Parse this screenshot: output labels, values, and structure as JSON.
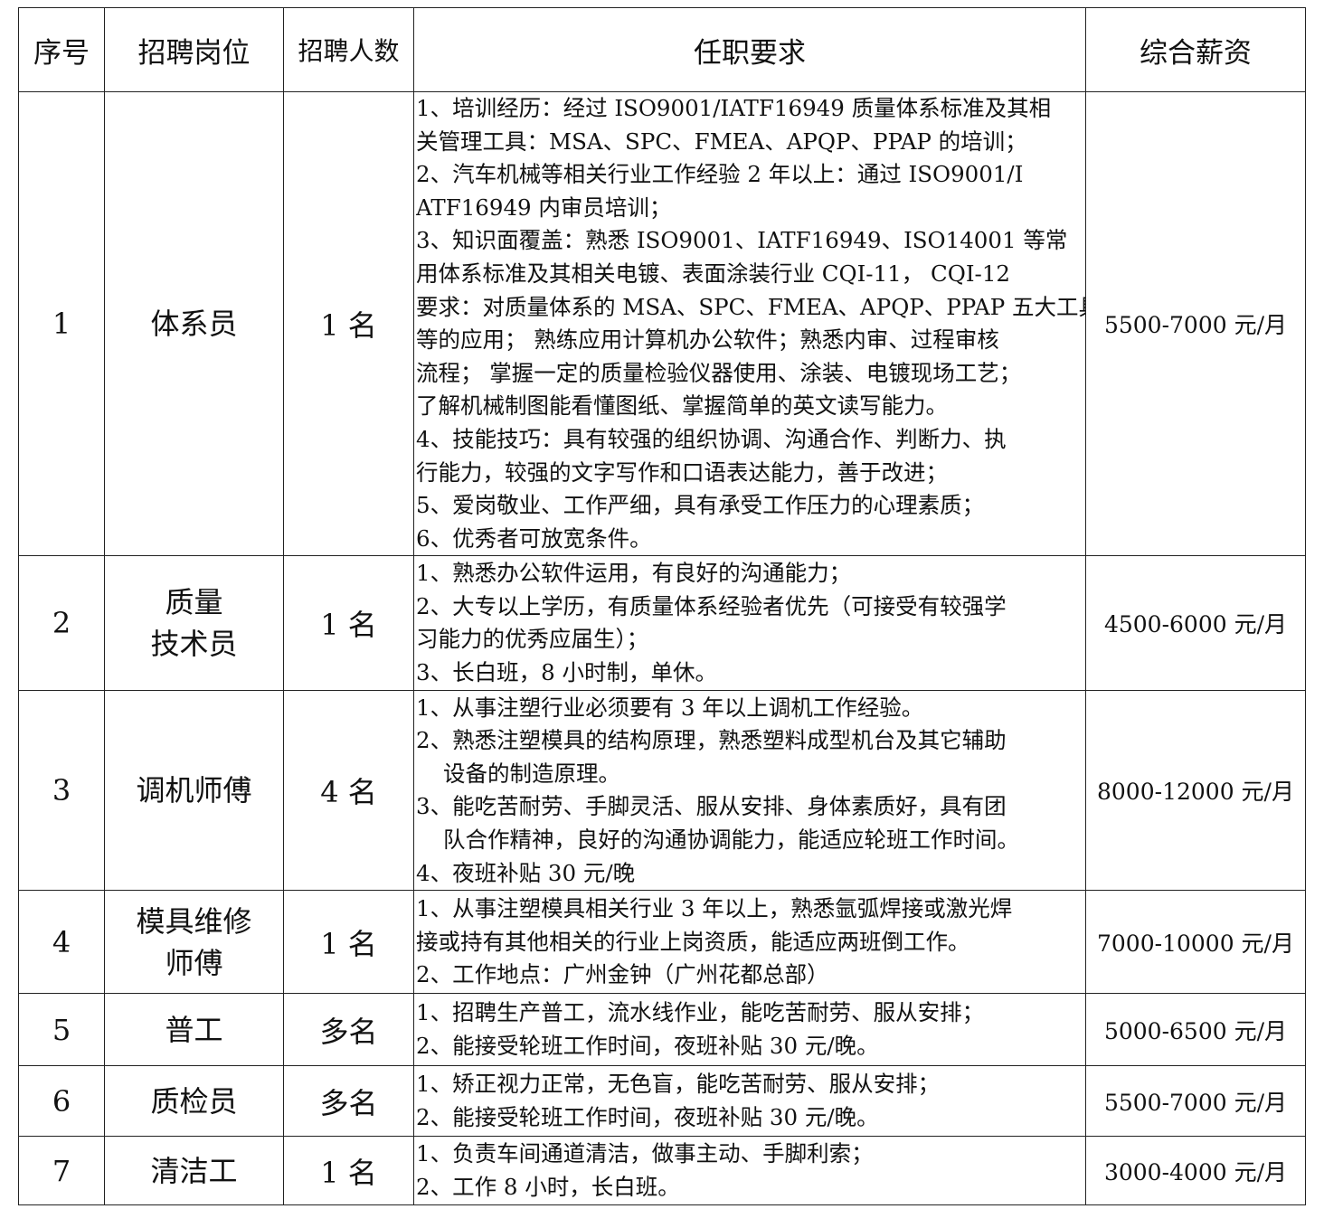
{
  "header": {
    "no": "序号",
    "position": "招聘岗位",
    "count": "招聘人数",
    "requirements": "任职要求",
    "salary": "综合薪资"
  },
  "rows": [
    {
      "no": "1",
      "position": [
        "体系员"
      ],
      "count": "1 名",
      "salary": "5500-7000 元/月",
      "requirements": [
        "1、培训经历：经过 ISO9001/IATF16949 质量体系标准及其相",
        "关管理工具：MSA、SPC、FMEA、APQP、PPAP 的培训；",
        "2、汽车机械等相关行业工作经验 2 年以上：通过 ISO9001/I",
        "ATF16949 内审员培训；",
        "3、知识面覆盖：熟悉 ISO9001、IATF16949、ISO14001 等常",
        "用体系标准及其相关电镀、表面涂装行业 CQI-11，  CQI-12",
        "要求：对质量体系的 MSA、SPC、FMEA、APQP、PPAP 五大工具",
        "等的应用； 熟练应用计算机办公软件；熟悉内审、过程审核",
        "流程； 掌握一定的质量检验仪器使用、涂装、电镀现场工艺；",
        "了解机械制图能看懂图纸、掌握简单的英文读写能力。",
        "4、技能技巧：具有较强的组织协调、沟通合作、判断力、执",
        "行能力，较强的文字写作和口语表达能力，善于改进；",
        "5、爱岗敬业、工作严细，具有承受工作压力的心理素质；",
        "6、优秀者可放宽条件。"
      ]
    },
    {
      "no": "2",
      "position": [
        "质量",
        "技术员"
      ],
      "count": "1 名",
      "salary": "4500-6000 元/月",
      "requirements": [
        "1、熟悉办公软件运用，有良好的沟通能力；",
        "2、大专以上学历，有质量体系经验者优先（可接受有较强学",
        "习能力的优秀应届生）；",
        "3、长白班，8 小时制，单休。"
      ]
    },
    {
      "no": "3",
      "position": [
        "调机师傅"
      ],
      "count": "4 名",
      "salary": "8000-12000 元/月",
      "requirements": [
        "1、从事注塑行业必须要有 3 年以上调机工作经验。",
        "2、熟悉注塑模具的结构原理，熟悉塑料成型机台及其它辅助",
        "设备的制造原理。",
        "3、能吃苦耐劳、手脚灵活、服从安排、身体素质好，具有团",
        "队合作精神，良好的沟通协调能力，能适应轮班工作时间。",
        "4、夜班补贴 30 元/晚"
      ]
    },
    {
      "no": "4",
      "position": [
        "模具维修",
        "师傅"
      ],
      "count": "1 名",
      "salary": "7000-10000 元/月",
      "requirements": [
        "1、从事注塑模具相关行业 3 年以上，熟悉氩弧焊接或激光焊",
        "接或持有其他相关的行业上岗资质，能适应两班倒工作。",
        "2、工作地点：广州金钟（广州花都总部）"
      ]
    },
    {
      "no": "5",
      "position": [
        "普工"
      ],
      "count": "多名",
      "salary": "5000-6500 元/月",
      "requirements": [
        "1、招聘生产普工，流水线作业，能吃苦耐劳、服从安排；",
        "2、能接受轮班工作时间，夜班补贴 30 元/晚。"
      ]
    },
    {
      "no": "6",
      "position": [
        "质检员"
      ],
      "count": "多名",
      "salary": "5500-7000 元/月",
      "requirements": [
        "1、矫正视力正常，无色盲，能吃苦耐劳、服从安排；",
        "2、能接受轮班工作时间，夜班补贴 30 元/晚。"
      ]
    },
    {
      "no": "7",
      "position": [
        "清洁工"
      ],
      "count": "1 名",
      "salary": "3000-4000 元/月",
      "requirements": [
        "1、负责车间通道清洁，做事主动、手脚利索；",
        "2、工作 8 小时，长白班。"
      ]
    }
  ]
}
